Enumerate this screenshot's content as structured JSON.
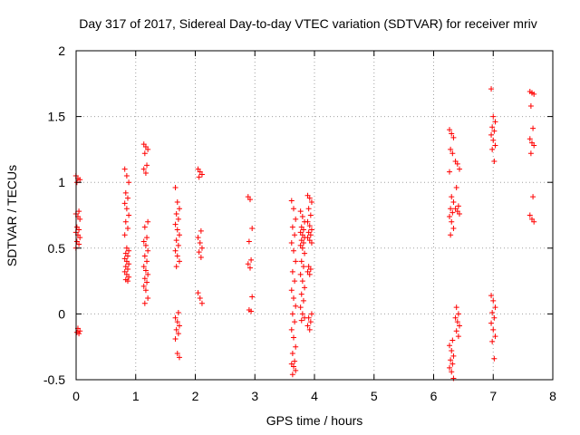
{
  "chart_data": {
    "type": "scatter",
    "title": "Day 317 of 2017, Sidereal Day-to-day VTEC variation (SDTVAR) for receiver mriv",
    "xlabel": "GPS time / hours",
    "ylabel": "SDTVAR / TECUs",
    "xlim": [
      0,
      8
    ],
    "ylim": [
      -0.5,
      2
    ],
    "xticks": [
      "0",
      "1",
      "2",
      "3",
      "4",
      "5",
      "6",
      "7",
      "8"
    ],
    "yticks": [
      "-0.5",
      "0",
      "0.5",
      "1",
      "1.5",
      "2"
    ],
    "grid": true,
    "marker": "+",
    "marker_color": "#ff0000",
    "clusters": [
      {
        "x": 0.03,
        "values": [
          1.05,
          1.03,
          1.02,
          1.0,
          0.78,
          0.76,
          0.74,
          0.72,
          0.66,
          0.64,
          0.62,
          0.6,
          0.58,
          0.55,
          0.53,
          0.5,
          -0.11,
          -0.13,
          -0.14,
          -0.15
        ]
      },
      {
        "x": 0.85,
        "values": [
          1.1,
          1.05,
          1.0,
          0.92,
          0.88,
          0.84,
          0.8,
          0.75,
          0.7,
          0.65,
          0.6,
          0.5,
          0.48,
          0.46,
          0.44,
          0.42,
          0.4,
          0.38,
          0.36,
          0.34,
          0.32,
          0.3,
          0.28,
          0.26,
          0.25
        ]
      },
      {
        "x": 1.17,
        "values": [
          1.29,
          1.27,
          1.25,
          1.22,
          1.13,
          1.1,
          1.07,
          0.7,
          0.66,
          0.58,
          0.55,
          0.52,
          0.48,
          0.44,
          0.4,
          0.36,
          0.33,
          0.3,
          0.27,
          0.24,
          0.21,
          0.18,
          0.12,
          0.08
        ]
      },
      {
        "x": 1.7,
        "values": [
          0.96,
          0.85,
          0.8,
          0.76,
          0.72,
          0.68,
          0.64,
          0.6,
          0.56,
          0.52,
          0.48,
          0.44,
          0.4,
          0.36,
          0.01,
          -0.03,
          -0.06,
          -0.09,
          -0.12,
          -0.15,
          -0.19,
          -0.3,
          -0.33
        ]
      },
      {
        "x": 2.08,
        "values": [
          1.1,
          1.08,
          1.06,
          1.04,
          0.63,
          0.58,
          0.54,
          0.5,
          0.47,
          0.43,
          0.16,
          0.12,
          0.08
        ]
      },
      {
        "x": 2.92,
        "values": [
          0.89,
          0.87,
          0.65,
          0.55,
          0.41,
          0.38,
          0.35,
          0.13,
          0.03,
          0.02
        ]
      },
      {
        "x": 3.65,
        "values": [
          0.86,
          0.8,
          0.72,
          0.66,
          0.6,
          0.54,
          0.48,
          0.4,
          0.32,
          0.25,
          0.18,
          0.12,
          0.06,
          0.0,
          -0.06,
          -0.12,
          -0.18,
          -0.25,
          -0.3,
          -0.36,
          -0.38,
          -0.4,
          -0.43,
          -0.46
        ]
      },
      {
        "x": 3.8,
        "values": [
          0.78,
          0.74,
          0.7,
          0.66,
          0.64,
          0.62,
          0.6,
          0.58,
          0.56,
          0.54,
          0.52,
          0.5,
          0.46,
          0.4,
          0.36,
          0.3,
          0.25,
          0.2,
          0.15,
          0.1,
          0.05,
          0.0,
          -0.03,
          -0.05
        ]
      },
      {
        "x": 3.92,
        "values": [
          0.9,
          0.88,
          0.85,
          0.8,
          0.75,
          0.7,
          0.67,
          0.64,
          0.62,
          0.6,
          0.58,
          0.56,
          0.54,
          0.36,
          0.34,
          0.32,
          0.3,
          0.0,
          -0.03,
          -0.06,
          -0.09,
          -0.12
        ]
      },
      {
        "x": 6.3,
        "values": [
          1.4,
          1.37,
          1.34,
          1.25,
          1.22,
          1.08,
          0.89,
          0.85,
          0.8,
          0.77,
          0.74,
          0.7,
          0.65,
          0.6,
          -0.2,
          -0.24,
          -0.28,
          -0.32,
          -0.35,
          -0.38,
          -0.41,
          -0.44,
          -0.49
        ]
      },
      {
        "x": 6.4,
        "values": [
          1.16,
          1.14,
          1.1,
          0.96,
          0.82,
          0.8,
          0.78,
          0.76,
          0.05,
          0.0,
          -0.03,
          -0.06,
          -0.09,
          -0.13,
          -0.17
        ]
      },
      {
        "x": 7.0,
        "values": [
          1.71,
          1.5,
          1.46,
          1.42,
          1.39,
          1.36,
          1.32,
          1.28,
          1.25,
          1.16,
          0.14,
          0.1,
          0.05,
          0.01,
          -0.03,
          -0.07,
          -0.12,
          -0.17,
          -0.21,
          -0.34
        ]
      },
      {
        "x": 7.65,
        "values": [
          1.69,
          1.68,
          1.67,
          1.58,
          1.41,
          1.33,
          1.3,
          1.28,
          1.22,
          0.89,
          0.75,
          0.72,
          0.7
        ]
      }
    ]
  }
}
